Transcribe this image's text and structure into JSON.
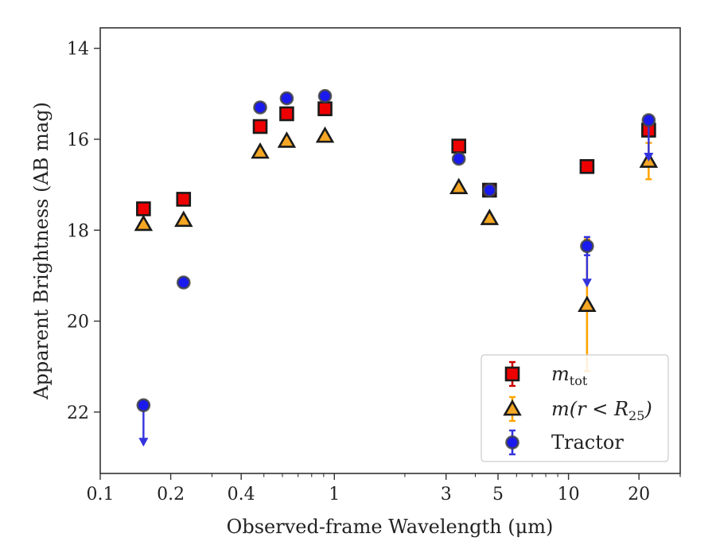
{
  "chart_data": {
    "type": "scatter",
    "xlabel": "Observed-frame Wavelength (μm)",
    "ylabel": "Apparent Brightness (AB mag)",
    "xscale": "log",
    "xlim": [
      0.1,
      30
    ],
    "ylim": [
      23.35,
      13.55
    ],
    "y_inverted": true,
    "grid": false,
    "legend_position": "lower-right",
    "xticks": [
      {
        "value": 0.1,
        "label": "0.1"
      },
      {
        "value": 0.2,
        "label": "0.2"
      },
      {
        "value": 0.4,
        "label": "0.4"
      },
      {
        "value": 1,
        "label": "1"
      },
      {
        "value": 3,
        "label": "3"
      },
      {
        "value": 5,
        "label": "5"
      },
      {
        "value": 10,
        "label": "10"
      },
      {
        "value": 20,
        "label": "20"
      }
    ],
    "yticks": [
      {
        "value": 14,
        "label": "14"
      },
      {
        "value": 16,
        "label": "16"
      },
      {
        "value": 18,
        "label": "18"
      },
      {
        "value": 20,
        "label": "20"
      },
      {
        "value": 22,
        "label": "22"
      }
    ],
    "series": [
      {
        "name": "m_tot",
        "legend": {
          "base": "m",
          "sub": "tot"
        },
        "marker": "square",
        "color": "#ee0000",
        "edge": "#1a1a1a",
        "errcolor": "#cc0000",
        "points": [
          {
            "x": 0.153,
            "y": 17.53,
            "err": 0.04
          },
          {
            "x": 0.227,
            "y": 17.32,
            "err": 0.03
          },
          {
            "x": 0.482,
            "y": 15.72,
            "err": 0.02
          },
          {
            "x": 0.626,
            "y": 15.44,
            "err": 0.02
          },
          {
            "x": 0.912,
            "y": 15.33,
            "err": 0.02
          },
          {
            "x": 3.4,
            "y": 16.15,
            "err": 0.02
          },
          {
            "x": 4.6,
            "y": 17.12,
            "err": 0.03
          },
          {
            "x": 12.0,
            "y": 16.6,
            "err": 0.03
          },
          {
            "x": 22.0,
            "y": 15.8,
            "err": 0.05
          }
        ]
      },
      {
        "name": "m(r<R_25)",
        "legend": {
          "base": "m(r < R",
          "sub": "25",
          "tail": ")"
        },
        "marker": "triangle",
        "color": "#f5a623",
        "edge": "#1a1a1a",
        "errcolor": "#ffa500",
        "points": [
          {
            "x": 0.153,
            "y": 17.87,
            "err": 0.04
          },
          {
            "x": 0.227,
            "y": 17.78,
            "err": 0.04
          },
          {
            "x": 0.482,
            "y": 16.28,
            "err": 0.02
          },
          {
            "x": 0.626,
            "y": 16.04,
            "err": 0.02
          },
          {
            "x": 0.912,
            "y": 15.93,
            "err": 0.02
          },
          {
            "x": 3.4,
            "y": 17.06,
            "err": 0.03
          },
          {
            "x": 4.6,
            "y": 17.74,
            "err": 0.04
          },
          {
            "x": 12.0,
            "y": 19.65,
            "err": 1.45
          },
          {
            "x": 22.0,
            "y": 16.48,
            "err": 0.4
          }
        ]
      },
      {
        "name": "Tractor",
        "legend": {
          "base": "Tractor"
        },
        "marker": "circle",
        "color": "#1a1aee",
        "edge": "#444444",
        "errcolor": "#3333dd",
        "points": [
          {
            "x": 0.153,
            "y": 21.85,
            "err": 0.04,
            "upper_limit": true
          },
          {
            "x": 0.227,
            "y": 19.15,
            "err": 0.04
          },
          {
            "x": 0.482,
            "y": 15.3,
            "err": 0.02
          },
          {
            "x": 0.626,
            "y": 15.1,
            "err": 0.02
          },
          {
            "x": 0.912,
            "y": 15.05,
            "err": 0.02
          },
          {
            "x": 3.4,
            "y": 16.43,
            "err": 0.03
          },
          {
            "x": 4.6,
            "y": 17.12,
            "err": 0.03
          },
          {
            "x": 12.0,
            "y": 18.35,
            "err": 0.2,
            "upper_limit": true
          },
          {
            "x": 22.0,
            "y": 15.58,
            "err": 0.05,
            "upper_limit": true
          }
        ]
      }
    ]
  }
}
